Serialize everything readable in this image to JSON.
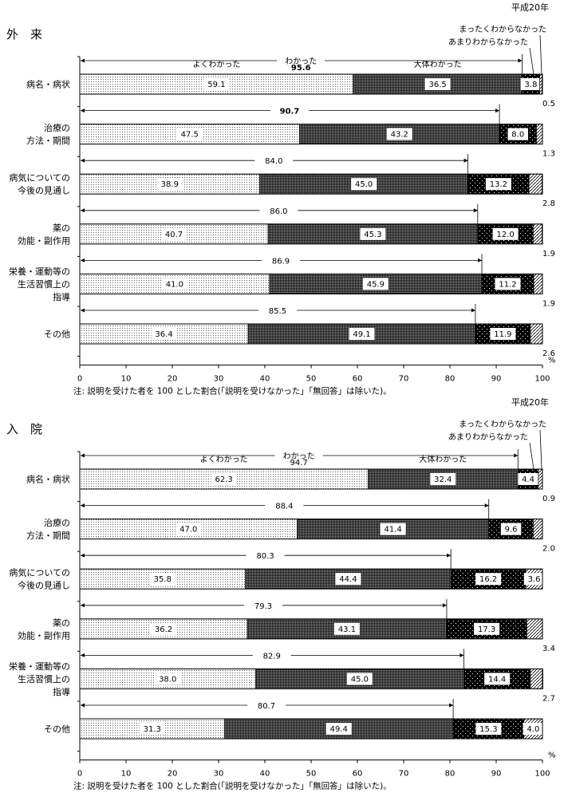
{
  "chart_data": [
    {
      "type": "bar",
      "orientation": "horizontal-stacked",
      "title": "外　来",
      "year_label": "平成20年",
      "categories": [
        [
          "病名・病状"
        ],
        [
          "治療の",
          "方法・期間"
        ],
        [
          "病気についての",
          "今後の見通し"
        ],
        [
          "薬の",
          "効能・副作用"
        ],
        [
          "栄養・運動等の",
          "生活習慣上の",
          "指導"
        ],
        [
          "その他"
        ]
      ],
      "series": [
        {
          "name": "よくわかった",
          "values": [
            59.1,
            47.5,
            38.9,
            40.7,
            41.0,
            36.4
          ]
        },
        {
          "name": "大体わかった",
          "values": [
            36.5,
            43.2,
            45.0,
            45.3,
            45.9,
            49.1
          ]
        },
        {
          "name": "あまりわからなかった",
          "values": [
            3.8,
            8.0,
            13.2,
            12.0,
            11.2,
            11.9
          ]
        },
        {
          "name": "まったくわからなかった",
          "values": [
            0.5,
            1.3,
            2.8,
            1.9,
            1.9,
            2.6
          ]
        }
      ],
      "understood_label": "わかった",
      "understood_totals": [
        "95.6",
        "90.7",
        "84.0",
        "86.0",
        "86.9",
        "85.5"
      ],
      "xlim": [
        0,
        100
      ],
      "xticks": [
        "0",
        "10",
        "20",
        "30",
        "40",
        "50",
        "60",
        "70",
        "80",
        "90",
        "100"
      ],
      "unit": "%",
      "note": "注: 説明を受けた者を 100 とした割合(「説明を受けなかった」「無回答」は除いた)。"
    },
    {
      "type": "bar",
      "orientation": "horizontal-stacked",
      "title": "入　院",
      "year_label": "平成20年",
      "categories": [
        [
          "病名・病状"
        ],
        [
          "治療の",
          "方法・期間"
        ],
        [
          "病気についての",
          "今後の見通し"
        ],
        [
          "薬の",
          "効能・副作用"
        ],
        [
          "栄養・運動等の",
          "生活習慣上の",
          "指導"
        ],
        [
          "その他"
        ]
      ],
      "series": [
        {
          "name": "よくわかった",
          "values": [
            62.3,
            47.0,
            35.8,
            36.2,
            38.0,
            31.3
          ]
        },
        {
          "name": "大体わかった",
          "values": [
            32.4,
            41.4,
            44.4,
            43.1,
            45.0,
            49.4
          ]
        },
        {
          "name": "あまりわからなかった",
          "values": [
            4.4,
            9.6,
            16.2,
            17.3,
            14.4,
            15.3
          ]
        },
        {
          "name": "まったくわからなかった",
          "values": [
            0.9,
            2.0,
            3.6,
            3.4,
            2.7,
            4.0
          ]
        }
      ],
      "understood_label": "わかった",
      "understood_totals": [
        "94.7",
        "88.4",
        "80.3",
        "79.3",
        "82.9",
        "80.7"
      ],
      "xlim": [
        0,
        100
      ],
      "xticks": [
        "0",
        "10",
        "20",
        "30",
        "40",
        "50",
        "60",
        "70",
        "80",
        "90",
        "100"
      ],
      "unit": "%",
      "note": "注: 説明を受けた者を 100 とした割合(「説明を受けなかった」「無回答」は除いた)。"
    }
  ]
}
